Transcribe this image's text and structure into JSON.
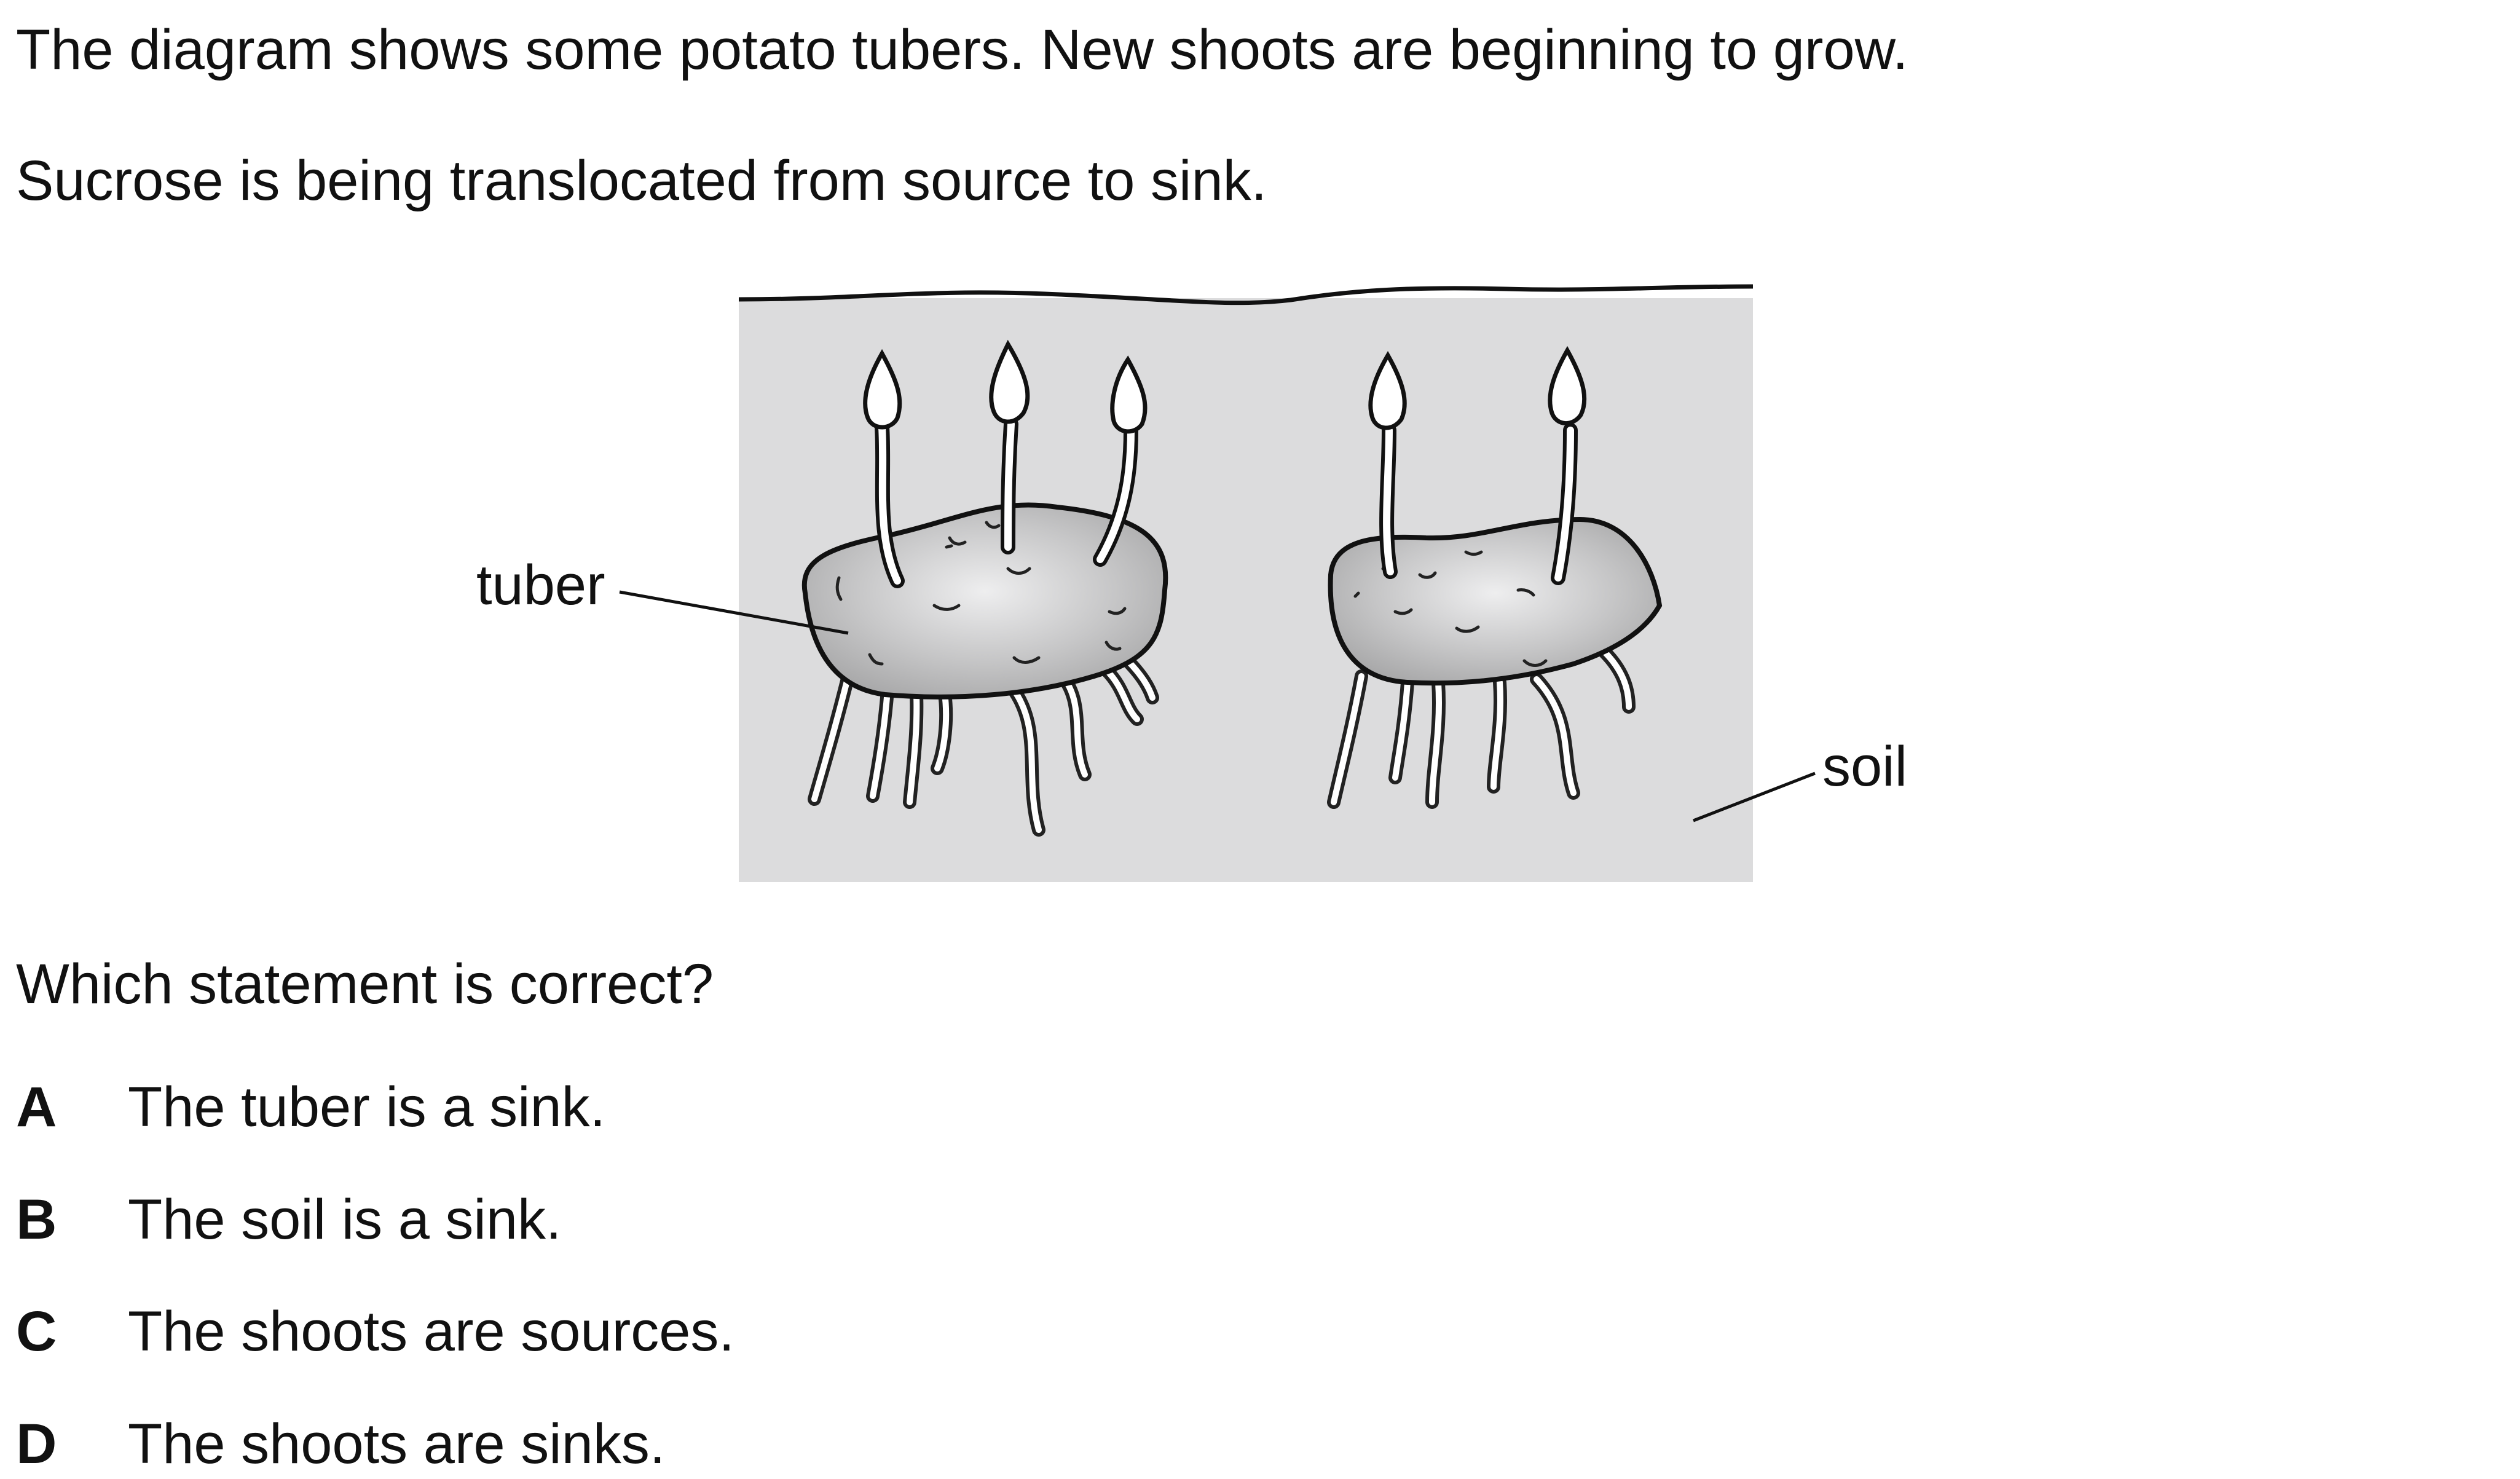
{
  "intro": {
    "line1": "The diagram shows some potato tubers. New shoots are beginning to grow.",
    "line2": "Sucrose is being translocated from source to sink."
  },
  "diagram": {
    "label_tuber": "tuber",
    "label_soil": "soil",
    "soil_color": "#dcdcdd",
    "tuber_color": "#bdbdbe"
  },
  "question": "Which statement is correct?",
  "options": [
    {
      "letter": "A",
      "text": "The tuber is a sink."
    },
    {
      "letter": "B",
      "text": "The soil is a sink."
    },
    {
      "letter": "C",
      "text": "The shoots are sources."
    },
    {
      "letter": "D",
      "text": "The shoots are sinks."
    }
  ]
}
